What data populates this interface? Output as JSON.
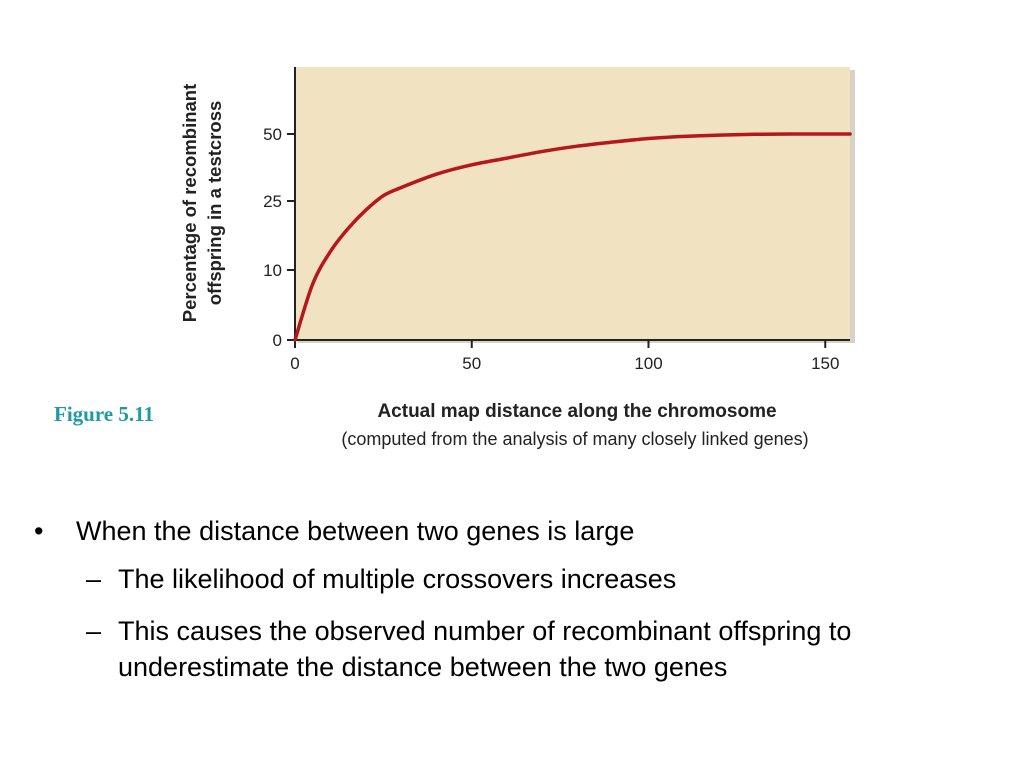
{
  "figure_label": "Figure 5.11",
  "chart_data": {
    "type": "line",
    "title": "",
    "xlabel": "Actual map distance along the chromosome",
    "xlabel_sub": "(computed from the analysis of many closely linked genes)",
    "ylabel_line1": "Percentage of recombinant",
    "ylabel_line2": "offspring in a testcross",
    "x_ticks": [
      0,
      50,
      100,
      150
    ],
    "y_ticks": [
      0,
      10,
      25,
      50
    ],
    "xlim": [
      0,
      157
    ],
    "y_scale": "nonlinear",
    "grid": false,
    "series": [
      {
        "x": [
          0,
          5,
          10,
          15,
          20,
          25,
          30,
          40,
          50,
          60,
          70,
          80,
          90,
          100,
          110,
          120,
          130,
          140,
          150,
          157
        ],
        "y": [
          0,
          8,
          14,
          19,
          23,
          27,
          30,
          35,
          38.5,
          41,
          43.5,
          45.5,
          47,
          48.3,
          49.1,
          49.6,
          49.9,
          50,
          50,
          50
        ]
      }
    ],
    "colors": {
      "plot_bg": "#f1e2c2",
      "line": "#b5171b",
      "axis": "#222222"
    }
  },
  "bullets": [
    {
      "text": "When the distance between two genes is large",
      "children": [
        "The likelihood of multiple crossovers increases",
        "This causes the observed number of recombinant offspring to underestimate the distance between the two genes"
      ]
    }
  ]
}
